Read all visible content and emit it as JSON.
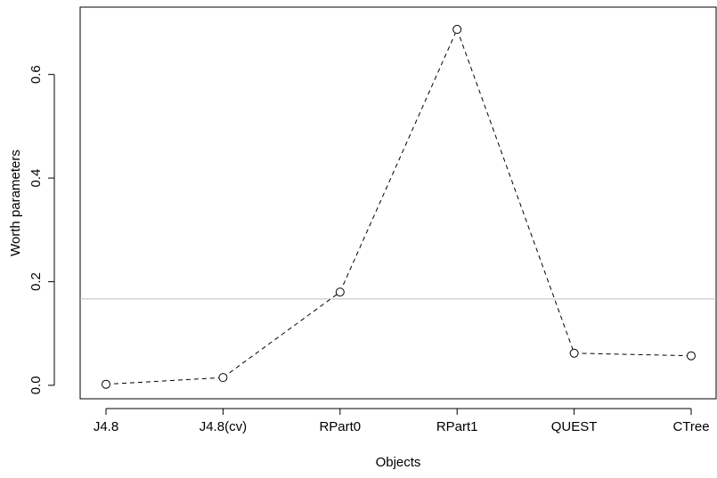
{
  "chart_data": {
    "type": "line",
    "title": "",
    "xlabel": "Objects",
    "ylabel": "Worth parameters",
    "categories": [
      "J4.8",
      "J4.8(cv)",
      "RPart0",
      "RPart1",
      "QUEST",
      "CTree"
    ],
    "values": [
      0.002,
      0.015,
      0.18,
      0.687,
      0.062,
      0.057
    ],
    "yticks": [
      "0.0",
      "0.2",
      "0.4",
      "0.6"
    ],
    "ylim": [
      -0.026,
      0.73
    ],
    "reference_line": 0.1667,
    "grid": false,
    "line_style": "dashed",
    "marker": "open-circle",
    "colors": {
      "line": "#000000",
      "reference": "#bebebe",
      "axis": "#000000"
    }
  }
}
